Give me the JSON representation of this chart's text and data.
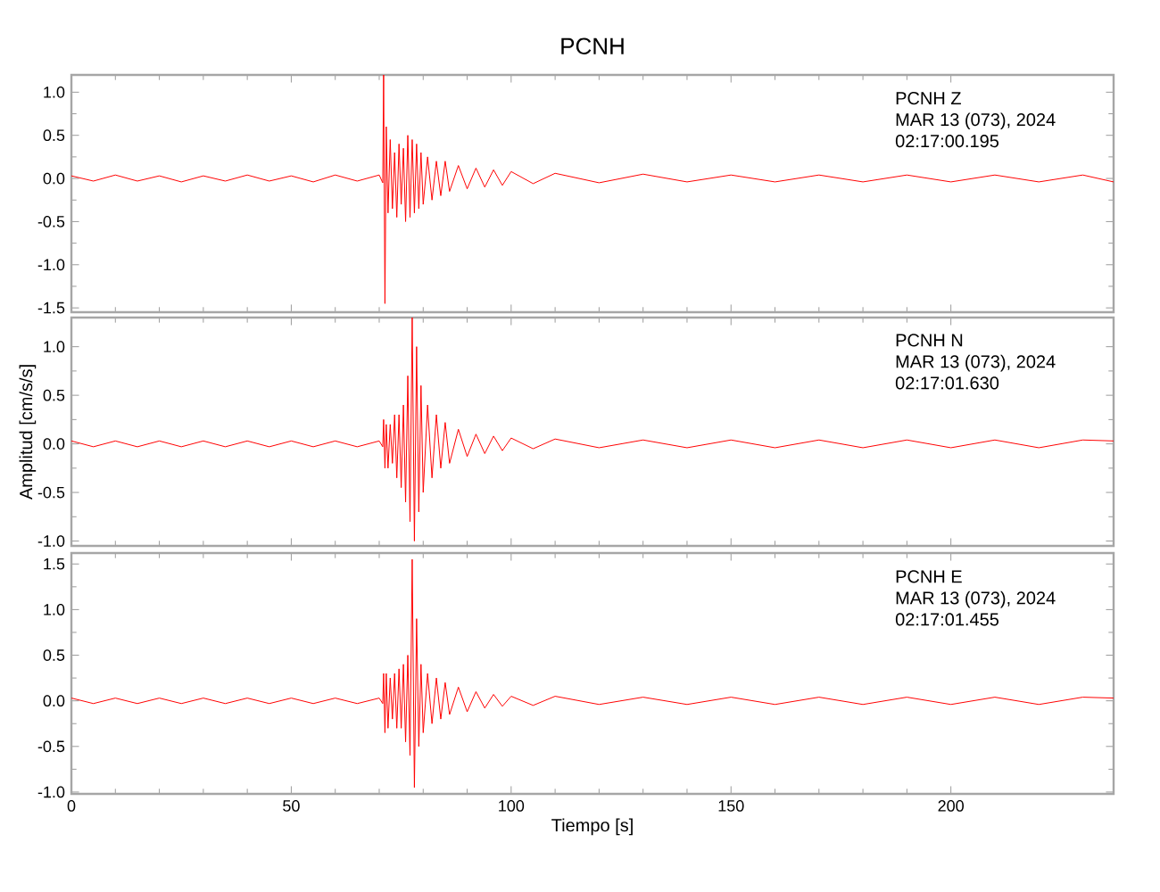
{
  "chart_data": [
    {
      "type": "line",
      "title": "PCNH",
      "tick_labels": "y",
      "color": "#ff0000",
      "xlim": [
        0,
        237
      ],
      "ylim": [
        -1.55,
        1.2
      ],
      "xticks": [
        0,
        50,
        100,
        150,
        200
      ],
      "yticks": [
        -1.5,
        {
          "value": -1,
          "label": "-1.0"
        },
        -0.5,
        {
          "value": 0,
          "label": "0.0"
        },
        0.5,
        {
          "value": 1,
          "label": "1.0"
        }
      ],
      "annotations": [
        "PCNH   Z",
        "MAR 13 (073), 2024",
        "02:17:00.195"
      ],
      "x": [
        0,
        5,
        10,
        15,
        20,
        25,
        30,
        35,
        40,
        45,
        50,
        55,
        60,
        65,
        70,
        70.8,
        71.0,
        71.3,
        71.6,
        72,
        72.5,
        73,
        73.5,
        74,
        74.5,
        75,
        75.5,
        76,
        76.5,
        77,
        77.5,
        78,
        78.5,
        79,
        79.5,
        80,
        81,
        82,
        83,
        84,
        85,
        86,
        88,
        90,
        92,
        94,
        96,
        98,
        100,
        105,
        110,
        120,
        130,
        140,
        150,
        160,
        170,
        180,
        190,
        200,
        210,
        220,
        230,
        237
      ],
      "values": [
        0.03,
        -0.03,
        0.04,
        -0.03,
        0.03,
        -0.04,
        0.03,
        -0.03,
        0.04,
        -0.03,
        0.03,
        -0.04,
        0.04,
        -0.03,
        0.04,
        -0.05,
        1.2,
        -1.45,
        0.6,
        -0.4,
        0.45,
        -0.35,
        0.3,
        -0.45,
        0.4,
        -0.3,
        0.35,
        -0.5,
        0.5,
        -0.45,
        0.45,
        -0.4,
        0.4,
        -0.35,
        0.3,
        -0.3,
        0.25,
        -0.25,
        0.2,
        -0.2,
        0.2,
        -0.15,
        0.15,
        -0.12,
        0.12,
        -0.1,
        0.1,
        -0.08,
        0.08,
        -0.06,
        0.06,
        -0.05,
        0.05,
        -0.04,
        0.04,
        -0.04,
        0.04,
        -0.04,
        0.04,
        -0.04,
        0.04,
        -0.04,
        0.04,
        -0.04
      ]
    },
    {
      "type": "line",
      "ylabel": "Amplitud [cm/s/s]",
      "tick_labels": "y",
      "color": "#ff0000",
      "xlim": [
        0,
        237
      ],
      "ylim": [
        -1.05,
        1.3
      ],
      "xticks": [
        0,
        50,
        100,
        150,
        200
      ],
      "yticks": [
        {
          "value": -1,
          "label": "-1.0"
        },
        -0.5,
        {
          "value": 0,
          "label": "0.0"
        },
        0.5,
        {
          "value": 1,
          "label": "1.0"
        }
      ],
      "annotations": [
        "PCNH   N",
        "MAR 13 (073), 2024",
        "02:17:01.630"
      ],
      "x": [
        0,
        5,
        10,
        15,
        20,
        25,
        30,
        35,
        40,
        45,
        50,
        55,
        60,
        65,
        70,
        70.8,
        71.0,
        71.3,
        71.6,
        72,
        72.5,
        73,
        73.5,
        74,
        74.5,
        75,
        75.5,
        76,
        76.5,
        77,
        77.5,
        78,
        78.5,
        79,
        79.5,
        80,
        81,
        82,
        83,
        84,
        85,
        86,
        88,
        90,
        92,
        94,
        96,
        98,
        100,
        105,
        110,
        120,
        130,
        140,
        150,
        160,
        170,
        180,
        190,
        200,
        210,
        220,
        230,
        237
      ],
      "values": [
        0.03,
        -0.03,
        0.03,
        -0.03,
        0.03,
        -0.03,
        0.03,
        -0.03,
        0.03,
        -0.03,
        0.03,
        -0.03,
        0.03,
        -0.03,
        0.03,
        -0.03,
        0.25,
        -0.25,
        0.2,
        -0.25,
        0.2,
        -0.2,
        0.3,
        -0.35,
        0.3,
        -0.45,
        0.4,
        -0.6,
        0.7,
        -0.8,
        1.3,
        -1.0,
        1.0,
        -0.7,
        0.6,
        -0.5,
        0.4,
        -0.35,
        0.3,
        -0.25,
        0.22,
        -0.2,
        0.15,
        -0.13,
        0.1,
        -0.1,
        0.08,
        -0.07,
        0.06,
        -0.05,
        0.05,
        -0.04,
        0.04,
        -0.04,
        0.04,
        -0.04,
        0.04,
        -0.04,
        0.04,
        -0.04,
        0.04,
        -0.04,
        0.04,
        0.03
      ]
    },
    {
      "type": "line",
      "xlabel": "Tiempo [s]",
      "color": "#ff0000",
      "xlim": [
        0,
        237
      ],
      "ylim": [
        -1.02,
        1.62
      ],
      "xticks": [
        0,
        50,
        100,
        150,
        200
      ],
      "yticks": [
        {
          "value": -1,
          "label": "-1.0"
        },
        -0.5,
        {
          "value": 0,
          "label": "0.0"
        },
        0.5,
        {
          "value": 1,
          "label": "1.0"
        },
        1.5
      ],
      "annotations": [
        "PCNH   E",
        "MAR 13 (073), 2024",
        "02:17:01.455"
      ],
      "x": [
        0,
        5,
        10,
        15,
        20,
        25,
        30,
        35,
        40,
        45,
        50,
        55,
        60,
        65,
        70,
        70.8,
        71.0,
        71.3,
        71.6,
        72,
        72.5,
        73,
        73.5,
        74,
        74.5,
        75,
        75.5,
        76,
        76.5,
        77,
        77.5,
        78,
        78.5,
        79,
        79.5,
        80,
        81,
        82,
        83,
        84,
        85,
        86,
        88,
        90,
        92,
        94,
        96,
        98,
        100,
        105,
        110,
        120,
        130,
        140,
        150,
        160,
        170,
        180,
        190,
        200,
        210,
        220,
        230,
        237
      ],
      "values": [
        0.03,
        -0.03,
        0.03,
        -0.03,
        0.03,
        -0.03,
        0.03,
        -0.03,
        0.03,
        -0.03,
        0.03,
        -0.03,
        0.03,
        -0.03,
        0.03,
        -0.03,
        0.3,
        -0.35,
        0.3,
        -0.3,
        0.25,
        -0.2,
        0.3,
        -0.3,
        0.35,
        -0.3,
        0.4,
        -0.45,
        0.5,
        -0.6,
        1.55,
        -0.95,
        0.9,
        -0.5,
        0.4,
        -0.35,
        0.3,
        -0.25,
        0.25,
        -0.2,
        0.2,
        -0.15,
        0.15,
        -0.12,
        0.1,
        -0.08,
        0.07,
        -0.06,
        0.05,
        -0.05,
        0.05,
        -0.04,
        0.04,
        -0.04,
        0.04,
        -0.04,
        0.04,
        -0.04,
        0.04,
        -0.04,
        0.04,
        -0.04,
        0.04,
        0.03
      ]
    }
  ]
}
